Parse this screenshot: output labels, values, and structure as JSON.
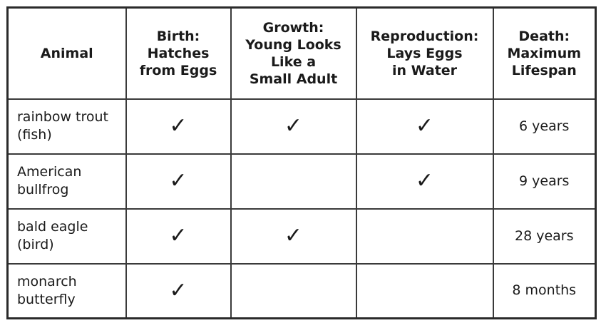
{
  "columns": [
    {
      "label": "Animal"
    },
    {
      "label": "Birth:\nHatches\nfrom Eggs"
    },
    {
      "label": "Growth:\nYoung Looks\nLike a\nSmall Adult"
    },
    {
      "label": "Reproduction:\nLays Eggs\nin Water"
    },
    {
      "label": "Death:\nMaximum\nLifespan"
    }
  ],
  "check_symbol": "✓",
  "rows": [
    {
      "animal": "rainbow trout\n(fish)",
      "hatches_from_eggs": true,
      "young_looks_like_adult": true,
      "lays_eggs_in_water": true,
      "max_lifespan": "6 years"
    },
    {
      "animal": "American\nbullfrog",
      "hatches_from_eggs": true,
      "young_looks_like_adult": false,
      "lays_eggs_in_water": true,
      "max_lifespan": "9 years"
    },
    {
      "animal": "bald eagle\n(bird)",
      "hatches_from_eggs": true,
      "young_looks_like_adult": true,
      "lays_eggs_in_water": false,
      "max_lifespan": "28 years"
    },
    {
      "animal": "monarch\nbutterfly",
      "hatches_from_eggs": true,
      "young_looks_like_adult": false,
      "lays_eggs_in_water": false,
      "max_lifespan": "8 months"
    }
  ]
}
